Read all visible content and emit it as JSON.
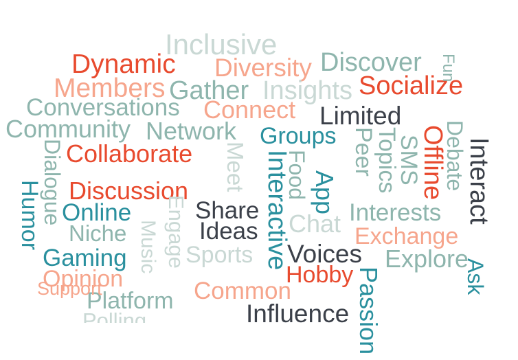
{
  "palette": {
    "red": "#e84a2e",
    "salmon": "#f6a58c",
    "teal": "#2a909e",
    "sage": "#8eb5ad",
    "pale": "#c9d8d4",
    "dark": "#3b4049"
  },
  "words": [
    {
      "text": "Inclusive",
      "color": "pale"
    },
    {
      "text": "Dynamic",
      "color": "red"
    },
    {
      "text": "Diversity",
      "color": "salmon"
    },
    {
      "text": "Discover",
      "color": "sage"
    },
    {
      "text": "Members",
      "color": "salmon"
    },
    {
      "text": "Gather",
      "color": "sage"
    },
    {
      "text": "Insights",
      "color": "pale"
    },
    {
      "text": "Socialize",
      "color": "red"
    },
    {
      "text": "Conversations",
      "color": "sage"
    },
    {
      "text": "Connect",
      "color": "salmon"
    },
    {
      "text": "Limited",
      "color": "dark"
    },
    {
      "text": "Community",
      "color": "sage"
    },
    {
      "text": "Network",
      "color": "sage"
    },
    {
      "text": "Groups",
      "color": "teal"
    },
    {
      "text": "Collaborate",
      "color": "red"
    },
    {
      "text": "Discussion",
      "color": "red"
    },
    {
      "text": "Online",
      "color": "teal"
    },
    {
      "text": "Share",
      "color": "dark"
    },
    {
      "text": "Ideas",
      "color": "dark"
    },
    {
      "text": "Interests",
      "color": "sage"
    },
    {
      "text": "Niche",
      "color": "sage"
    },
    {
      "text": "Exchange",
      "color": "salmon"
    },
    {
      "text": "Gaming",
      "color": "teal"
    },
    {
      "text": "Sports",
      "color": "pale"
    },
    {
      "text": "Voices",
      "color": "dark"
    },
    {
      "text": "Explore",
      "color": "sage"
    },
    {
      "text": "Opinion",
      "color": "salmon"
    },
    {
      "text": "Hobby",
      "color": "red"
    },
    {
      "text": "Platform",
      "color": "sage"
    },
    {
      "text": "Common",
      "color": "salmon"
    },
    {
      "text": "Influence",
      "color": "dark"
    },
    {
      "text": "Chat",
      "color": "pale"
    },
    {
      "text": "Meet",
      "color": "pale"
    },
    {
      "text": "Interactive",
      "color": "teal"
    },
    {
      "text": "Food",
      "color": "sage"
    },
    {
      "text": "App",
      "color": "teal"
    },
    {
      "text": "Peer",
      "color": "sage"
    },
    {
      "text": "Topics",
      "color": "sage"
    },
    {
      "text": "SMS",
      "color": "sage"
    },
    {
      "text": "Offline",
      "color": "red"
    },
    {
      "text": "Debate",
      "color": "sage"
    },
    {
      "text": "Interact",
      "color": "dark"
    },
    {
      "text": "Dialogue",
      "color": "sage"
    },
    {
      "text": "Humor",
      "color": "teal"
    },
    {
      "text": "Music",
      "color": "pale"
    },
    {
      "text": "Engage",
      "color": "pale"
    },
    {
      "text": "Passion",
      "color": "teal"
    },
    {
      "text": "Polling",
      "color": "pale"
    },
    {
      "text": "Fun",
      "color": "sage"
    },
    {
      "text": "Support",
      "color": "salmon"
    },
    {
      "text": "Ask",
      "color": "teal"
    }
  ]
}
